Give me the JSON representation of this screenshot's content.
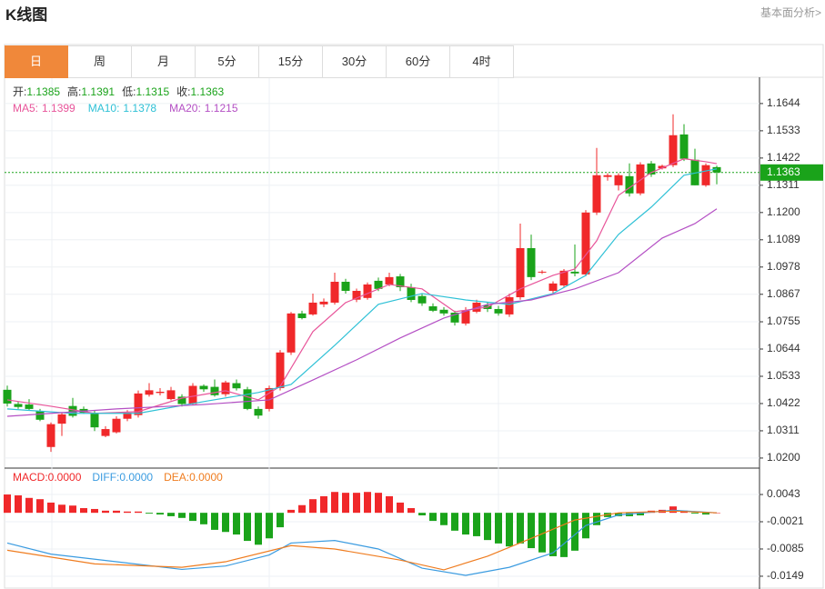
{
  "header": {
    "title": "K线图",
    "link": "基本面分析>"
  },
  "tabs": [
    "日",
    "周",
    "月",
    "5分",
    "15分",
    "30分",
    "60分",
    "4时"
  ],
  "chart_data": {
    "type": "candlestick",
    "up_color": "#f0282a",
    "down_color": "#1aa31a",
    "info": [
      {
        "label": "开:",
        "value": 1.1385
      },
      {
        "label": "高:",
        "value": 1.1391
      },
      {
        "label": "低:",
        "value": 1.1315
      },
      {
        "label": "收:",
        "value": 1.1363
      }
    ],
    "info_color": "#1aa31a",
    "ohlc": {
      "open": [
        1.0478,
        1.042,
        1.0418,
        1.0392,
        1.0245,
        1.034,
        1.0412,
        1.04,
        1.0385,
        1.029,
        1.0305,
        1.036,
        1.0375,
        1.0458,
        1.0465,
        1.044,
        1.045,
        1.042,
        1.0494,
        1.049,
        1.046,
        1.0505,
        1.048,
        1.04,
        1.04,
        1.0485,
        1.063,
        1.0789,
        1.0785,
        1.0826,
        1.0833,
        1.0918,
        1.0845,
        1.0852,
        1.0922,
        1.0907,
        1.094,
        1.0896,
        1.086,
        1.0818,
        1.0804,
        1.0792,
        1.0748,
        1.0796,
        1.0822,
        1.0807,
        1.0785,
        1.0855,
        1.1055,
        1.0956,
        1.0881,
        1.0903,
        1.0959,
        1.0948,
        1.12,
        1.1345,
        1.1311,
        1.1348,
        1.1278,
        1.14,
        1.138,
        1.1393,
        1.1518,
        1.1415,
        1.1311,
        1.1385
      ],
      "high": [
        1.0495,
        1.043,
        1.044,
        1.04,
        1.0345,
        1.0385,
        1.0445,
        1.041,
        1.0395,
        1.033,
        1.037,
        1.0395,
        1.0475,
        1.0505,
        1.0485,
        1.049,
        1.046,
        1.0505,
        1.05,
        1.052,
        1.0515,
        1.052,
        1.049,
        1.041,
        1.0495,
        1.064,
        1.0795,
        1.08,
        1.087,
        1.085,
        1.0955,
        1.093,
        1.089,
        1.0915,
        1.0935,
        1.0955,
        1.095,
        1.091,
        1.087,
        1.083,
        1.0815,
        1.08,
        1.0815,
        1.0845,
        1.0835,
        1.082,
        1.087,
        1.1155,
        1.111,
        1.0965,
        1.092,
        1.097,
        1.107,
        1.121,
        1.1463,
        1.136,
        1.136,
        1.14,
        1.1405,
        1.141,
        1.1395,
        1.16,
        1.156,
        1.146,
        1.14,
        1.1391
      ],
      "low": [
        1.041,
        1.04,
        1.0395,
        1.035,
        1.0225,
        1.029,
        1.0365,
        1.038,
        1.031,
        1.0285,
        1.03,
        1.035,
        1.0365,
        1.045,
        1.0455,
        1.0435,
        1.041,
        1.0415,
        1.047,
        1.045,
        1.045,
        1.0475,
        1.0395,
        1.036,
        1.039,
        1.0475,
        1.062,
        1.0765,
        1.078,
        1.0815,
        1.0825,
        1.087,
        1.0835,
        1.0845,
        1.088,
        1.09,
        1.088,
        1.0835,
        1.082,
        1.0795,
        1.078,
        1.074,
        1.074,
        1.079,
        1.0795,
        1.078,
        1.0775,
        1.0845,
        1.0925,
        1.095,
        1.087,
        1.0895,
        1.094,
        1.094,
        1.119,
        1.133,
        1.129,
        1.1265,
        1.127,
        1.1345,
        1.1375,
        1.1385,
        1.141,
        1.1311,
        1.1305,
        1.1315
      ],
      "close": [
        1.0422,
        1.0408,
        1.04,
        1.0356,
        1.0338,
        1.0378,
        1.0372,
        1.0385,
        1.0325,
        1.0318,
        1.036,
        1.0385,
        1.0463,
        1.0476,
        1.047,
        1.0476,
        1.042,
        1.0494,
        1.048,
        1.0456,
        1.0508,
        1.0484,
        1.04,
        1.0373,
        1.0485,
        1.063,
        1.0789,
        1.077,
        1.0833,
        1.0837,
        1.0918,
        1.0881,
        1.0881,
        1.0907,
        1.0889,
        1.0937,
        1.0896,
        1.0844,
        1.083,
        1.08,
        1.0789,
        1.0752,
        1.08,
        1.0833,
        1.0807,
        1.0789,
        1.0855,
        1.1055,
        1.0937,
        1.0959,
        1.0911,
        1.0963,
        1.0952,
        1.12,
        1.1352,
        1.1352,
        1.1352,
        1.1278,
        1.1396,
        1.1355,
        1.139,
        1.1515,
        1.1419,
        1.1311,
        1.1393,
        1.1363
      ]
    },
    "ma_series": [
      {
        "name": "MA5:",
        "color": "#e8559a",
        "last": 1.1399,
        "x": [
          0,
          4,
          8,
          12,
          16,
          20,
          23,
          25,
          28,
          31,
          35,
          38,
          41,
          44,
          47,
          50,
          52,
          54,
          56,
          59,
          62,
          64,
          65
        ],
        "values": [
          1.0437,
          1.0411,
          1.0382,
          1.0389,
          1.0444,
          1.0474,
          1.0437,
          1.0492,
          1.0715,
          1.0833,
          1.0907,
          1.0889,
          1.0796,
          1.0815,
          1.0889,
          1.0944,
          1.097,
          1.1085,
          1.127,
          1.1363,
          1.1419,
          1.1407,
          1.1399
        ]
      },
      {
        "name": "MA10:",
        "color": "#2fc1d6",
        "last": 1.1378,
        "x": [
          0,
          6,
          12,
          18,
          23,
          26,
          30,
          34,
          38,
          42,
          46,
          50,
          53,
          56,
          59,
          62,
          65
        ],
        "values": [
          1.04,
          1.0382,
          1.0382,
          1.043,
          1.0467,
          1.05,
          1.0659,
          1.0826,
          1.087,
          1.0844,
          1.0826,
          1.087,
          1.0944,
          1.1111,
          1.1222,
          1.1352,
          1.1378
        ]
      },
      {
        "name": "MA20:",
        "color": "#b44fc4",
        "last": 1.1215,
        "x": [
          0,
          10,
          18,
          24,
          28,
          32,
          36,
          40,
          44,
          48,
          52,
          56,
          60,
          63,
          65
        ],
        "values": [
          1.037,
          1.04,
          1.0418,
          1.0437,
          1.0518,
          1.06,
          1.0689,
          1.077,
          1.0826,
          1.0844,
          1.0889,
          1.0955,
          1.1096,
          1.1155,
          1.1215
        ]
      }
    ],
    "current_price": 1.1363,
    "ylim": [
      1.0159,
      1.1751
    ],
    "yticks": [
      1.1644,
      1.1533,
      1.1422,
      1.1311,
      {
        "value": 1.12,
        "label": "1.1200"
      },
      1.1089,
      1.0978,
      1.0867,
      1.0755,
      1.0644,
      1.0533,
      1.0422,
      1.0311,
      {
        "value": 1.02,
        "label": "1.0200"
      }
    ],
    "grid": true,
    "macd": {
      "type": "bar",
      "legend": [
        {
          "name": "MACD:",
          "value": 0,
          "value_label": "0.0000",
          "color": "#f0282a"
        },
        {
          "name": "DIFF:",
          "value": 0,
          "value_label": "0.0000",
          "color": "#3a9be0"
        },
        {
          "name": "DEA:",
          "value": 0,
          "value_label": "0.0000",
          "color": "#ef7c1f"
        }
      ],
      "histogram": [
        0.0043,
        0.0041,
        0.0035,
        0.0032,
        0.0024,
        0.0019,
        0.0017,
        0.0011,
        0.0009,
        0.0005,
        0.0005,
        0.0003,
        0.0003,
        -0.0002,
        -0.0004,
        -0.0008,
        -0.0012,
        -0.0019,
        -0.0027,
        -0.004,
        -0.0045,
        -0.0051,
        -0.0066,
        -0.0075,
        -0.006,
        -0.0034,
        0.0007,
        0.0018,
        0.0032,
        0.0039,
        0.0049,
        0.0047,
        0.0047,
        0.0049,
        0.0047,
        0.0039,
        0.0024,
        0.0011,
        -0.0006,
        -0.0019,
        -0.0029,
        -0.0042,
        -0.0051,
        -0.0055,
        -0.0064,
        -0.0072,
        -0.0079,
        -0.0072,
        -0.0083,
        -0.0093,
        -0.0102,
        -0.0104,
        -0.0089,
        -0.006,
        -0.0029,
        -0.001,
        -0.0008,
        -0.0008,
        -0.0006,
        0.0005,
        0.0007,
        0.0015,
        0.0005,
        -0.0002,
        -0.0004,
        0
      ],
      "lines": [
        {
          "name": "DIFF",
          "color": "#3a9be0",
          "x": [
            0,
            4,
            10,
            16,
            20,
            24,
            26,
            30,
            34,
            38,
            42,
            46,
            50,
            53,
            56,
            61,
            65
          ],
          "values": [
            -0.0071,
            -0.0097,
            -0.0115,
            -0.0133,
            -0.0125,
            -0.0099,
            -0.0071,
            -0.0065,
            -0.0085,
            -0.013,
            -0.0147,
            -0.0128,
            -0.0094,
            -0.003,
            -0.0005,
            0.0006,
            0
          ]
        },
        {
          "name": "DEA",
          "color": "#ef7c1f",
          "x": [
            0,
            8,
            16,
            20,
            26,
            30,
            36,
            40,
            44,
            48,
            52,
            56,
            61,
            65
          ],
          "values": [
            -0.0088,
            -0.012,
            -0.0128,
            -0.0115,
            -0.0077,
            -0.0085,
            -0.0111,
            -0.0134,
            -0.0102,
            -0.006,
            -0.0017,
            0,
            0.0004,
            0
          ]
        }
      ],
      "ylim": [
        -0.0179,
        0.0105
      ],
      "yticks": [
        0.0043,
        -0.0021,
        -0.0085,
        -0.0149
      ]
    }
  }
}
